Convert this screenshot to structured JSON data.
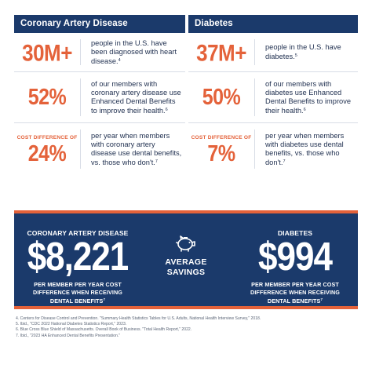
{
  "left": {
    "heading": "Coronary Artery Disease",
    "stats": [
      {
        "value": "30M+",
        "text": "people in the U.S. have been diagnosed with heart disease.",
        "ref": "4"
      },
      {
        "value": "52%",
        "text": "of our members with coronary artery disease use Enhanced Dental Benefits to improve their health.",
        "ref": "6"
      },
      {
        "label": "COST DIFFERENCE OF",
        "value": "24%",
        "text": "per year when members with coronary artery disease use dental benefits, vs. those who don't.",
        "ref": "7"
      }
    ]
  },
  "right": {
    "heading": "Diabetes",
    "stats": [
      {
        "value": "37M+",
        "text": "people in the U.S. have diabetes.",
        "ref": "5"
      },
      {
        "value": "50%",
        "text": "of our members with diabetes use Enhanced Dental Benefits to improve their health.",
        "ref": "6"
      },
      {
        "label": "COST DIFFERENCE OF",
        "value": "7%",
        "text": "per year when members with diabetes use dental benefits, vs. those who don't.",
        "ref": "7"
      }
    ]
  },
  "banner": {
    "left": {
      "title": "CORONARY ARTERY DISEASE",
      "value": "$8,221",
      "desc": "PER MEMBER PER YEAR COST DIFFERENCE WHEN RECEIVING DENTAL BENEFITS",
      "ref": "7"
    },
    "center": {
      "icon": "piggy-bank-icon",
      "line1": "AVERAGE",
      "line2": "SAVINGS"
    },
    "right": {
      "title": "DIABETES",
      "value": "$994",
      "desc": "PER MEMBER PER YEAR COST DIFFERENCE WHEN RECEIVING DENTAL BENEFITS",
      "ref": "7"
    }
  },
  "footnotes": [
    "4. Centers for Disease Control and Prevention. \"Summary Health Statistics Tables for U.S. Adults, National Health Interview Survey,\" 2018.",
    "5. Ibid., \"CDC 2022 National Diabetes Statistics Report,\" 2023.",
    "6. Blue Cross Blue Shield of Massachusetts. Overall Book of Business. \"Total Health Report,\" 2022.",
    "7. Ibid., \"2023 HA Enhanced Dental Benefits Presentation.\""
  ],
  "colors": {
    "navy": "#1b3a6b",
    "accent": "#e4623a",
    "text": "#1f2f4f"
  }
}
